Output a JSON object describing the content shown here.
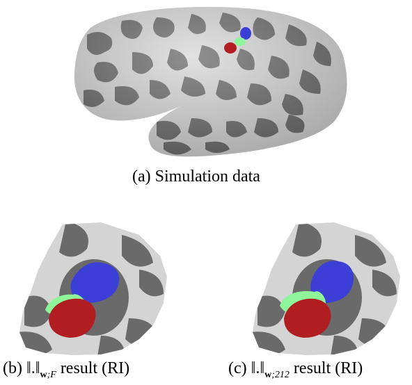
{
  "figure": {
    "panel_a": {
      "label": "(a)",
      "caption": "Simulation data"
    },
    "panel_b": {
      "label": "(b)",
      "norm_sub_bold": "w",
      "norm_sub_rest": ";F",
      "caption_rest": "result (RI)"
    },
    "panel_c": {
      "label": "(c)",
      "norm_sub_bold": "w",
      "norm_sub_rest": ";212",
      "caption_rest": "result (RI)"
    }
  },
  "colors": {
    "cortex_light": "#d8d8d8",
    "cortex_dark": "#6a6a6a",
    "region_blue": "#3b3fd6",
    "region_green": "#8ff59a",
    "region_red": "#b01e22"
  }
}
